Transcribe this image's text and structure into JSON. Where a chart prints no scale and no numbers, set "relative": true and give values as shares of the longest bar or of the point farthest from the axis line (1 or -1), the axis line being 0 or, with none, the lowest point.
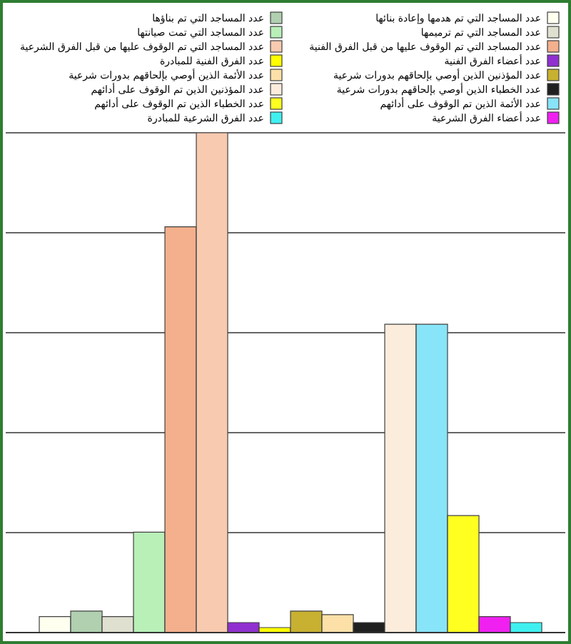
{
  "chart_data": {
    "type": "bar",
    "relative": true,
    "categories": [
      null
    ],
    "grid": "y",
    "legend": "top",
    "series": [
      {
        "name": "عدد المساجد التي تم هدمها وإعادة بنائها",
        "color": "#fffff0",
        "values": [
          0.032
        ]
      },
      {
        "name": "عدد المساجد التي تم بناؤها",
        "color": "#b0d0b0",
        "values": [
          0.043
        ]
      },
      {
        "name": "عدد المساجد التي تم ترميمها",
        "color": "#e0e0d0",
        "values": [
          0.032
        ]
      },
      {
        "name": "عدد المساجد التي تمت صيانتها",
        "color": "#b8f0b8",
        "values": [
          0.201
        ]
      },
      {
        "name": "عدد المساجد التي تم الوقوف عليها من قبل الفرق الفنية",
        "color": "#f4b08c",
        "values": [
          0.812
        ]
      },
      {
        "name": "عدد المساجد التي تم الوقوف عليها من قبل الفرق الشرعية",
        "color": "#f8cab0",
        "values": [
          1
        ]
      },
      {
        "name": "عدد أعضاء الفرق الفنية",
        "color": "#9030d0",
        "values": [
          0.02
        ]
      },
      {
        "name": "عدد الفرق الفنية للمبادرة",
        "color": "#ffff00",
        "values": [
          0.01
        ]
      },
      {
        "name": "عدد المؤذنين الذين أوصي بإلحاقهم بدورات شرعية",
        "color": "#c8b030",
        "values": [
          0.043
        ]
      },
      {
        "name": "عدد الأئمة الذين أوصي بإلحاقهم بدورات شرعية",
        "color": "#fce0a8",
        "values": [
          0.036
        ]
      },
      {
        "name": "عدد الخطباء الذين أوصي بإلحاقهم بدورات شرعية",
        "color": "#202020",
        "values": [
          0.02
        ]
      },
      {
        "name": "عدد المؤذنين الذين تم الوقوف على أدائهم",
        "color": "#fcecdc",
        "values": [
          0.617
        ]
      },
      {
        "name": "عدد الأئمة الذين تم الوقوف على أدائهم",
        "color": "#88e4f8",
        "values": [
          0.617
        ]
      },
      {
        "name": "عدد الخطباء الذين تم الوقوف على أدائهم",
        "color": "#ffff20",
        "values": [
          0.234
        ]
      },
      {
        "name": "عدد أعضاء الفرق الشرعية",
        "color": "#f020f0",
        "values": [
          0.032
        ]
      },
      {
        "name": "عدد الفرق الشرعية للمبادرة",
        "color": "#40f0f0",
        "values": [
          0.02
        ]
      }
    ]
  }
}
